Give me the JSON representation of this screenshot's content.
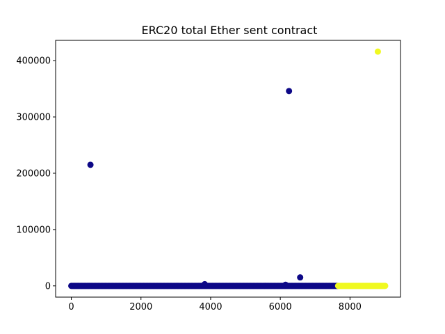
{
  "chart_data": {
    "type": "scatter",
    "title": "ERC20 total Ether sent contract",
    "xlabel": "",
    "ylabel": "",
    "xlim": [
      -450,
      9450
    ],
    "ylim": [
      -20000,
      436000
    ],
    "x_ticks": [
      0,
      2000,
      4000,
      6000,
      8000
    ],
    "x_tick_labels": [
      "0",
      "2000",
      "4000",
      "6000",
      "8000"
    ],
    "y_ticks": [
      0,
      100000,
      200000,
      300000,
      400000
    ],
    "y_tick_labels": [
      "0",
      "100000",
      "200000",
      "300000",
      "400000"
    ],
    "grid": false,
    "colors": {
      "class_0": "#0d0887",
      "class_1": "#f0f921"
    },
    "series": [
      {
        "name": "class_0",
        "color": "#0d0887",
        "dense_range": [
          0,
          7660
        ],
        "dense_value": 0,
        "points": [
          {
            "x": 550,
            "y": 215000
          },
          {
            "x": 3830,
            "y": 3000
          },
          {
            "x": 6150,
            "y": 2000
          },
          {
            "x": 6250,
            "y": 346000
          },
          {
            "x": 6570,
            "y": 15000
          }
        ]
      },
      {
        "name": "class_1",
        "color": "#f0f921",
        "dense_range": [
          7660,
          9020
        ],
        "dense_value": 0,
        "points": [
          {
            "x": 8800,
            "y": 416000
          }
        ]
      }
    ]
  }
}
